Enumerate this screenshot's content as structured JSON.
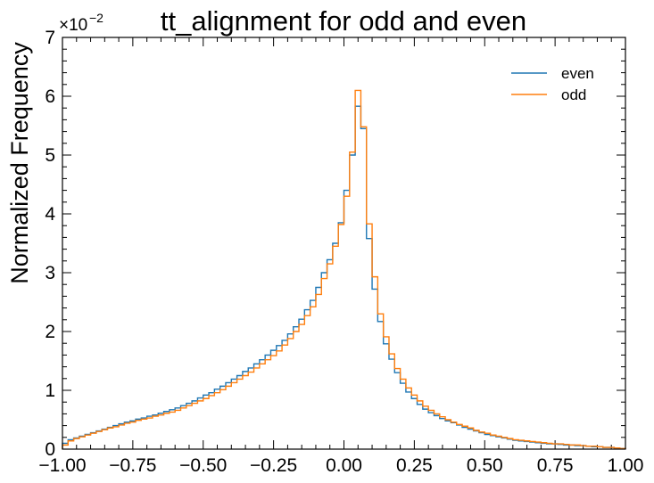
{
  "chart_data": {
    "type": "histogram-step",
    "title": "tt_alignment for odd and even",
    "xlabel": "",
    "ylabel": "Normalized Frequency",
    "xlim": [
      -1.0,
      1.0
    ],
    "ylim": [
      0,
      0.07
    ],
    "y_multiplier_base": "×10",
    "y_multiplier_exp": "−2",
    "x_ticks": [
      -1.0,
      -0.75,
      -0.5,
      -0.25,
      0.0,
      0.25,
      0.5,
      0.75,
      1.0
    ],
    "x_tick_labels": [
      "−1.00",
      "−0.75",
      "−0.50",
      "−0.25",
      "0.00",
      "0.25",
      "0.50",
      "0.75",
      "1.00"
    ],
    "y_ticks": [
      0,
      0.01,
      0.02,
      0.03,
      0.04,
      0.05,
      0.06,
      0.07
    ],
    "y_tick_labels": [
      "0",
      "1",
      "2",
      "3",
      "4",
      "5",
      "6",
      "7"
    ],
    "legend_position": "top-right",
    "bin_edges_range": [
      -1.0,
      1.0
    ],
    "n_bins": 100,
    "series": [
      {
        "name": "even",
        "color": "#1f77b4",
        "values": [
          0.001,
          0.0016,
          0.0019,
          0.0022,
          0.0025,
          0.0028,
          0.0031,
          0.0034,
          0.0037,
          0.004,
          0.0043,
          0.0046,
          0.0048,
          0.0051,
          0.0053,
          0.0056,
          0.0058,
          0.0061,
          0.0064,
          0.0067,
          0.007,
          0.0074,
          0.0078,
          0.0082,
          0.0087,
          0.0092,
          0.0096,
          0.0102,
          0.0107,
          0.0113,
          0.0119,
          0.0125,
          0.0132,
          0.0138,
          0.0145,
          0.0152,
          0.016,
          0.0168,
          0.0176,
          0.0185,
          0.0196,
          0.0208,
          0.0221,
          0.0237,
          0.0253,
          0.0275,
          0.03,
          0.0322,
          0.035,
          0.0385,
          0.044,
          0.05,
          0.0583,
          0.0545,
          0.0358,
          0.0272,
          0.0217,
          0.0179,
          0.0153,
          0.013,
          0.0112,
          0.0097,
          0.0086,
          0.0076,
          0.0068,
          0.0062,
          0.0057,
          0.0052,
          0.0048,
          0.0045,
          0.0041,
          0.0037,
          0.0034,
          0.0031,
          0.0028,
          0.0025,
          0.0023,
          0.0021,
          0.0019,
          0.0017,
          0.0015,
          0.0014,
          0.0013,
          0.0012,
          0.0011,
          0.001,
          0.0009,
          0.0009,
          0.0008,
          0.0007,
          0.0007,
          0.0006,
          0.0006,
          0.0005,
          0.0004,
          0.0004,
          0.0003,
          0.0003,
          0.0002,
          0.0001
        ]
      },
      {
        "name": "odd",
        "color": "#ff7f0e",
        "values": [
          0.0007,
          0.0014,
          0.0018,
          0.0021,
          0.0024,
          0.0027,
          0.003,
          0.0033,
          0.0036,
          0.0038,
          0.0041,
          0.0044,
          0.0046,
          0.0049,
          0.0051,
          0.0053,
          0.0056,
          0.0058,
          0.0061,
          0.0063,
          0.0066,
          0.007,
          0.0074,
          0.0078,
          0.0082,
          0.0086,
          0.0091,
          0.0096,
          0.0101,
          0.0107,
          0.0113,
          0.0119,
          0.0125,
          0.0131,
          0.0138,
          0.0145,
          0.0152,
          0.0159,
          0.0167,
          0.0177,
          0.0188,
          0.02,
          0.0212,
          0.0227,
          0.0242,
          0.0263,
          0.029,
          0.0315,
          0.0345,
          0.0382,
          0.043,
          0.0505,
          0.061,
          0.0548,
          0.0383,
          0.0293,
          0.023,
          0.0191,
          0.0162,
          0.0137,
          0.0119,
          0.0104,
          0.0092,
          0.0082,
          0.0073,
          0.0066,
          0.006,
          0.0055,
          0.005,
          0.0046,
          0.0042,
          0.0039,
          0.0036,
          0.0032,
          0.0029,
          0.0027,
          0.0024,
          0.0022,
          0.002,
          0.0018,
          0.0016,
          0.0015,
          0.0014,
          0.0013,
          0.0012,
          0.0011,
          0.001,
          0.0009,
          0.0009,
          0.0008,
          0.0007,
          0.0007,
          0.0006,
          0.0005,
          0.0005,
          0.0004,
          0.0003,
          0.0003,
          0.0002,
          0.0001
        ]
      }
    ]
  }
}
